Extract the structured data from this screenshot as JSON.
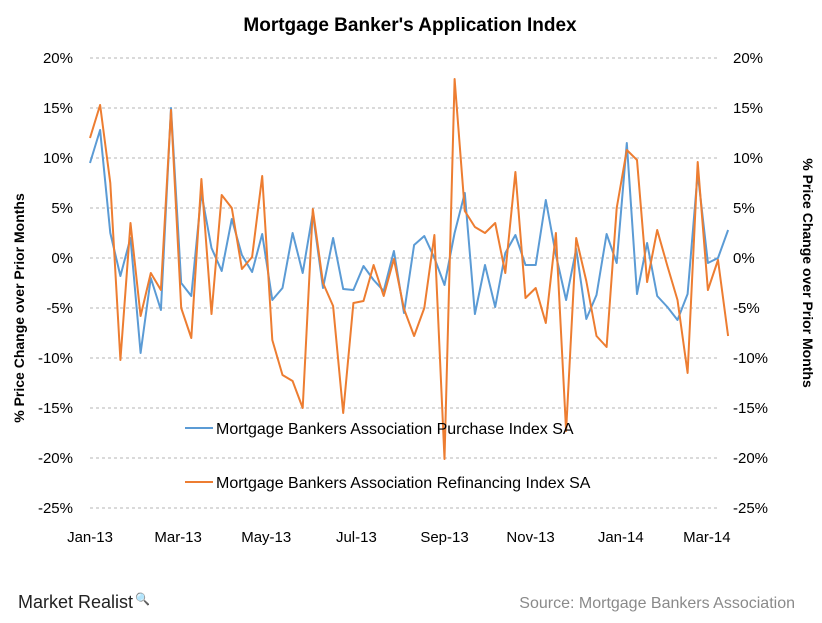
{
  "chart_data": {
    "type": "line",
    "title": "Mortgage Banker's Application Index",
    "ylabel_left": "% Price Change over Prior Months",
    "ylabel_right": "% Price Change over Prior Months",
    "ylim": [
      -25,
      20
    ],
    "yticks": [
      20,
      15,
      10,
      5,
      0,
      -5,
      -10,
      -15,
      -20,
      -25
    ],
    "ytick_labels": [
      "20%",
      "15%",
      "10%",
      "5%",
      "0%",
      "-5%",
      "-10%",
      "-15%",
      "-20%",
      "-25%"
    ],
    "xlim": [
      0,
      62
    ],
    "xticks": [
      0,
      8.7,
      17.4,
      26.3,
      35.0,
      43.5,
      52.4,
      60.9
    ],
    "xtick_labels": [
      "Jan-13",
      "Mar-13",
      "May-13",
      "Jul-13",
      "Sep-13",
      "Nov-13",
      "Jan-14",
      "Mar-14"
    ],
    "grid": true,
    "legend_position": "lower-center",
    "series": [
      {
        "name": "Mortgage Bankers Association Purchase Index SA",
        "color": "#5b9bd5",
        "values": [
          9.5,
          12.8,
          2.5,
          -1.8,
          2.0,
          -9.5,
          -2.0,
          -5.2,
          15.0,
          -2.5,
          -3.8,
          6.5,
          1.0,
          -1.3,
          3.9,
          0.3,
          -1.4,
          2.4,
          -4.2,
          -3.0,
          2.5,
          -1.5,
          4.5,
          -3.0,
          2.0,
          -3.1,
          -3.2,
          -0.8,
          -2.2,
          -3.3,
          0.7,
          -5.5,
          1.3,
          2.2,
          0.0,
          -2.7,
          2.5,
          6.5,
          -5.6,
          -0.7,
          -4.9,
          0.5,
          2.3,
          -0.7,
          -0.7,
          5.8,
          0.3,
          -4.2,
          0.9,
          -6.1,
          -3.7,
          2.4,
          -0.5,
          11.5,
          -3.6,
          1.5,
          -3.8,
          -4.9,
          -6.2,
          -3.6,
          8.5,
          -0.5,
          0.0,
          2.8
        ]
      },
      {
        "name": "Mortgage Bankers Association Refinancing Index SA",
        "color": "#ed7d31",
        "values": [
          12.0,
          15.3,
          7.5,
          -10.2,
          3.5,
          -5.8,
          -1.5,
          -3.2,
          14.8,
          -5.0,
          -8.0,
          7.9,
          -5.6,
          6.3,
          5.0,
          -1.1,
          0.1,
          8.2,
          -8.2,
          -11.7,
          -12.3,
          -15.0,
          4.9,
          -2.5,
          -4.8,
          -15.5,
          -4.5,
          -4.3,
          -0.7,
          -3.8,
          -0.1,
          -5.1,
          -7.8,
          -5.0,
          2.3,
          -20.1,
          17.9,
          4.7,
          3.1,
          2.5,
          3.5,
          -1.5,
          8.6,
          -4.0,
          -3.0,
          -6.5,
          2.5,
          -17.3,
          2.0,
          -2.3,
          -7.8,
          -8.9,
          5.0,
          10.8,
          9.8,
          -2.4,
          2.8,
          -0.8,
          -4.2,
          -11.5,
          9.6,
          -3.2,
          -0.2,
          -7.8
        ]
      }
    ]
  },
  "footer": {
    "brand": "Market Realist",
    "source": "Source: Mortgage Bankers Association"
  }
}
